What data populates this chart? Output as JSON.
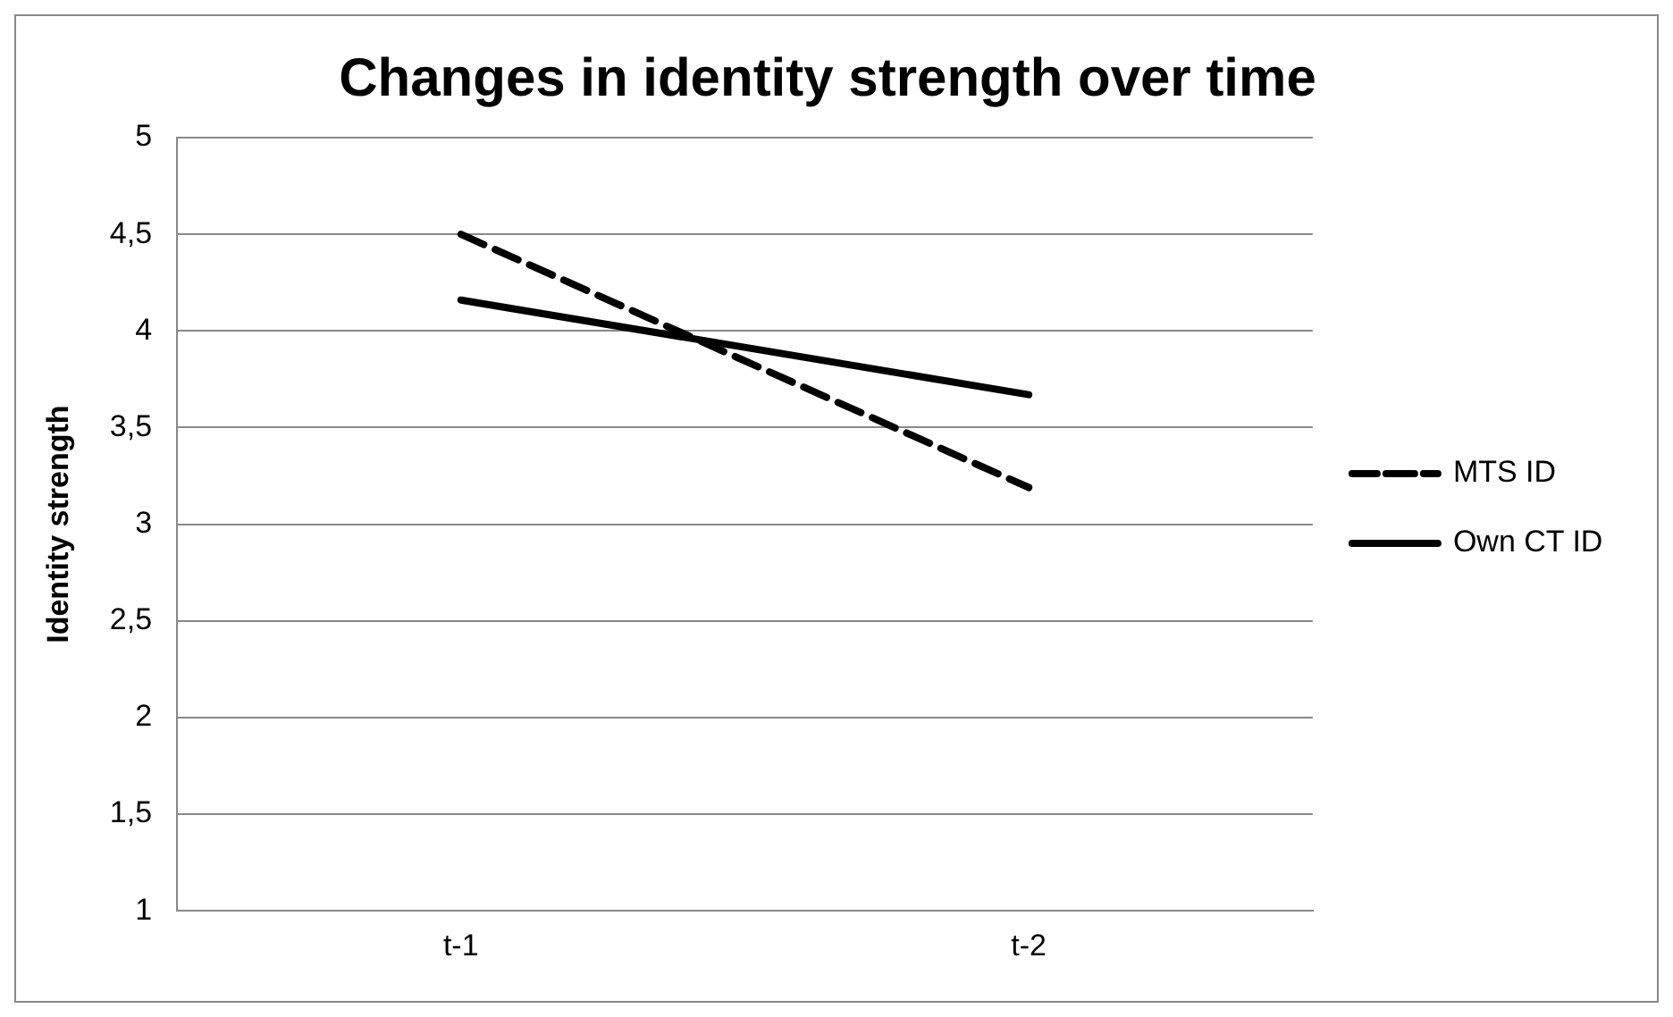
{
  "chart_data": {
    "type": "line",
    "title": "Changes in identity strength over time",
    "ylabel": "Identity strength",
    "categories": [
      "t-1",
      "t-2"
    ],
    "series": [
      {
        "name": "MTS ID",
        "color": "#000000",
        "values": [
          4.5,
          3.19
        ],
        "line_style": "dashed"
      },
      {
        "name": "Own CT ID",
        "color": "#000000",
        "values": [
          4.16,
          3.67
        ],
        "line_style": "solid"
      }
    ],
    "ylim": [
      1,
      5
    ],
    "yticks": [
      1,
      {
        "value": 1.5,
        "label": "1,5"
      },
      2,
      {
        "value": 2.5,
        "label": "2,5"
      },
      3,
      {
        "value": 3.5,
        "label": "3,5"
      },
      4,
      {
        "value": 4.5,
        "label": "4,5"
      },
      5
    ],
    "grid": "y",
    "legend": "right",
    "marker": "none"
  }
}
